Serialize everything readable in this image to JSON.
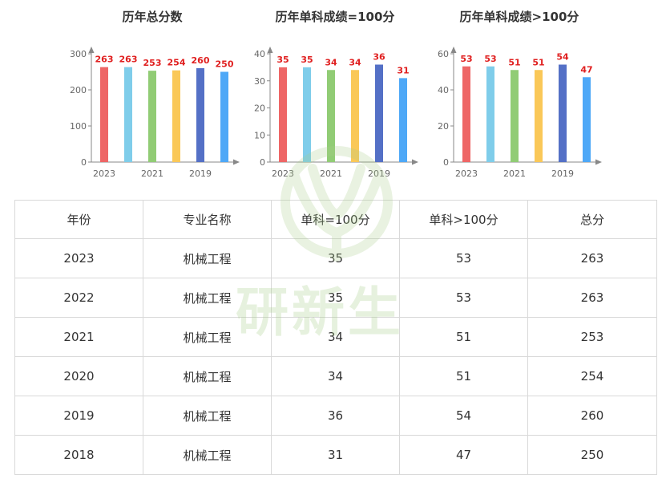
{
  "colors": {
    "title": "#333333",
    "data_label": "#e02020",
    "axis": "#888888",
    "border": "#d9d9d9",
    "watermark": "#a9cf8a"
  },
  "chart_data": [
    {
      "type": "bar",
      "title": "历年总分数",
      "categories": [
        "2023",
        "2022",
        "2021",
        "2020",
        "2019",
        "2018"
      ],
      "tick_categories": [
        "2023",
        "2021",
        "2019"
      ],
      "values": [
        263,
        263,
        253,
        254,
        260,
        250
      ],
      "bar_colors": [
        "#ee6666",
        "#7fcdea",
        "#91cc75",
        "#fac858",
        "#5470c6",
        "#4ea8f7"
      ],
      "ylim": [
        0,
        300
      ],
      "yticks": [
        0,
        100,
        200,
        300
      ],
      "xlabel": "",
      "ylabel": "",
      "grid": false
    },
    {
      "type": "bar",
      "title": "历年单科成绩=100分",
      "categories": [
        "2023",
        "2022",
        "2021",
        "2020",
        "2019",
        "2018"
      ],
      "tick_categories": [
        "2023",
        "2021",
        "2019"
      ],
      "values": [
        35,
        35,
        34,
        34,
        36,
        31
      ],
      "bar_colors": [
        "#ee6666",
        "#7fcdea",
        "#91cc75",
        "#fac858",
        "#5470c6",
        "#4ea8f7"
      ],
      "ylim": [
        0,
        40
      ],
      "yticks": [
        0,
        10,
        20,
        30,
        40
      ],
      "xlabel": "",
      "ylabel": "",
      "grid": false
    },
    {
      "type": "bar",
      "title": "历年单科成绩>100分",
      "categories": [
        "2023",
        "2022",
        "2021",
        "2020",
        "2019",
        "2018"
      ],
      "tick_categories": [
        "2023",
        "2021",
        "2019"
      ],
      "values": [
        53,
        53,
        51,
        51,
        54,
        47
      ],
      "bar_colors": [
        "#ee6666",
        "#7fcdea",
        "#91cc75",
        "#fac858",
        "#5470c6",
        "#4ea8f7"
      ],
      "ylim": [
        0,
        60
      ],
      "yticks": [
        0,
        20,
        40,
        60
      ],
      "xlabel": "",
      "ylabel": "",
      "grid": false
    }
  ],
  "table": {
    "headers": [
      "年份",
      "专业名称",
      "单科=100分",
      "单科>100分",
      "总分"
    ],
    "rows": [
      [
        "2023",
        "机械工程",
        "35",
        "53",
        "263"
      ],
      [
        "2022",
        "机械工程",
        "35",
        "53",
        "263"
      ],
      [
        "2021",
        "机械工程",
        "34",
        "51",
        "253"
      ],
      [
        "2020",
        "机械工程",
        "34",
        "51",
        "254"
      ],
      [
        "2019",
        "机械工程",
        "36",
        "54",
        "260"
      ],
      [
        "2018",
        "机械工程",
        "31",
        "47",
        "250"
      ]
    ]
  },
  "watermark": {
    "text": "研新生",
    "icon": "leaf-logo-icon"
  }
}
